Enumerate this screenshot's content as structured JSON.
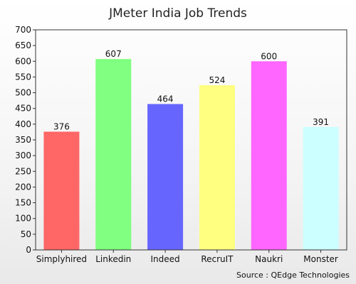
{
  "chart_data": {
    "type": "bar",
    "title": "JMeter India Job Trends",
    "categories": [
      "Simplyhired",
      "Linkedin",
      "Indeed",
      "RecruIT",
      "Naukri",
      "Monster"
    ],
    "values": [
      376,
      607,
      464,
      524,
      600,
      391
    ],
    "value_labels": [
      "376",
      "607",
      "464",
      "524",
      "600",
      "391"
    ],
    "colors": [
      "#ff6666",
      "#80ff80",
      "#6666ff",
      "#ffff80",
      "#ff66ff",
      "#ccffff"
    ],
    "ylim": [
      0,
      700
    ],
    "yticks": [
      0,
      50,
      100,
      150,
      200,
      250,
      300,
      350,
      400,
      450,
      500,
      550,
      600,
      650,
      700
    ],
    "ytick_labels": [
      "0",
      "50",
      "100",
      "150",
      "200",
      "250",
      "300",
      "350",
      "400",
      "450",
      "500",
      "550",
      "600",
      "650",
      "700"
    ],
    "source": "Source : QEdge Technologies",
    "grid": false,
    "legend": "none"
  }
}
